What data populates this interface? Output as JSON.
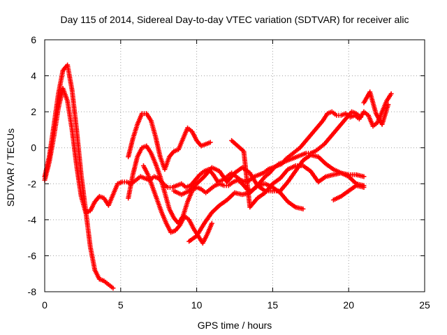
{
  "chart_data": {
    "type": "scatter",
    "title": "Day 115 of 2014, Sidereal Day-to-day VTEC variation (SDTVAR) for receiver alic",
    "xlabel": "GPS time / hours",
    "ylabel": "SDTVAR / TECUs",
    "xlim": [
      0,
      25
    ],
    "ylim": [
      -8,
      6
    ],
    "x_ticks": [
      "0",
      "5",
      "10",
      "15",
      "20",
      "25"
    ],
    "y_ticks": [
      "-8",
      "-6",
      "-4",
      "-2",
      "0",
      "2",
      "4",
      "6"
    ],
    "grid": true,
    "legend": "none",
    "marker": "plus",
    "color": "#ff0000",
    "series": [
      {
        "x": [
          0.0,
          0.3,
          0.6,
          0.9,
          1.2,
          1.5,
          1.8,
          2.1,
          2.4,
          2.7,
          3.0,
          3.3,
          3.6,
          3.9,
          4.2,
          4.5
        ],
        "y": [
          -1.6,
          -0.5,
          1.2,
          3.0,
          4.3,
          4.6,
          3.2,
          1.0,
          -1.5,
          -3.5,
          -5.5,
          -6.8,
          -7.3,
          -7.4,
          -7.6,
          -7.8
        ]
      },
      {
        "x": [
          0.0,
          0.3,
          0.6,
          0.9,
          1.2,
          1.5,
          1.8,
          2.1,
          2.4,
          2.7,
          3.0,
          3.3,
          3.6,
          3.9,
          4.2,
          4.5,
          4.8,
          5.1,
          5.4,
          5.7,
          6.0,
          6.3,
          6.6,
          6.9,
          7.2,
          7.5,
          7.8,
          8.1,
          8.4,
          8.7,
          9.0,
          9.3,
          9.6,
          9.9,
          10.2,
          10.5,
          10.8,
          11.1,
          11.4,
          11.7,
          12.0,
          12.3,
          12.6,
          12.9,
          13.2,
          13.5,
          13.8,
          14.1,
          14.4,
          14.7,
          15.0,
          15.3,
          15.6,
          15.9,
          16.2,
          16.5,
          16.8,
          17.1,
          17.4,
          17.7,
          18.0,
          18.3,
          18.6,
          18.9,
          19.2,
          19.5,
          19.8,
          20.1,
          20.4,
          20.7,
          21.0,
          21.3,
          21.6,
          21.9,
          22.2,
          22.5,
          22.8
        ],
        "y": [
          -1.8,
          -0.8,
          0.6,
          2.2,
          3.3,
          2.6,
          1.0,
          -1.0,
          -2.7,
          -3.6,
          -3.5,
          -3.0,
          -2.7,
          -2.8,
          -3.2,
          -2.6,
          -2.0,
          -1.9,
          -1.9,
          -2.0,
          -1.8,
          -1.6,
          -1.7,
          -1.8,
          -1.6,
          -1.7,
          -2.0,
          -2.2,
          -2.2,
          -2.1,
          -2.0,
          -2.2,
          -2.1,
          -1.8,
          -1.5,
          -1.3,
          -1.2,
          -1.5,
          -1.9,
          -1.8,
          -1.6,
          -1.4,
          -1.6,
          -1.8,
          -1.9,
          -1.8,
          -1.6,
          -1.5,
          -1.4,
          -1.2,
          -1.1,
          -1.0,
          -0.9,
          -0.6,
          -0.4,
          -0.2,
          0.0,
          0.3,
          0.6,
          0.9,
          1.2,
          1.5,
          1.9,
          2.0,
          1.8,
          1.8,
          1.9,
          1.7,
          1.8,
          1.6,
          2.0,
          1.8,
          1.2,
          1.4,
          2.0,
          2.6,
          3.0
        ]
      },
      {
        "x": [
          5.5,
          5.8,
          6.1,
          6.4,
          6.7,
          7.0,
          7.3,
          7.6,
          7.9,
          8.2,
          8.5,
          8.8,
          9.1,
          9.4,
          9.7,
          10.0,
          10.3,
          10.6,
          10.9,
          11.2,
          11.5,
          11.8,
          12.1,
          12.4,
          12.7,
          13.0,
          13.3,
          13.6,
          13.9,
          14.2,
          14.5,
          14.8,
          15.1,
          15.4,
          15.7,
          16.0,
          16.3,
          16.6,
          16.9,
          17.2,
          17.5,
          17.8,
          18.1,
          18.4,
          18.7,
          19.0,
          19.3,
          19.6,
          19.9,
          20.2,
          20.5,
          20.8
        ],
        "y": [
          -2.8,
          -1.5,
          -0.5,
          0.0,
          0.1,
          -0.3,
          -0.9,
          -1.6,
          -2.5,
          -3.4,
          -3.9,
          -4.2,
          -3.8,
          -3.0,
          -2.4,
          -2.2,
          -2.3,
          -2.5,
          -2.3,
          -2.1,
          -2.0,
          -2.1,
          -2.1,
          -1.9,
          -1.8,
          -2.0,
          -2.3,
          -2.4,
          -2.2,
          -1.9,
          -1.6,
          -1.4,
          -1.1,
          -0.9,
          -0.8,
          -0.7,
          -0.6,
          -0.5,
          -0.4,
          -0.3,
          -0.3,
          -0.2,
          0.0,
          0.2,
          0.5,
          0.8,
          1.1,
          1.4,
          1.7,
          2.0,
          1.9,
          1.7
        ]
      },
      {
        "x": [
          5.5,
          5.8,
          6.1,
          6.4,
          6.7,
          7.0,
          7.3,
          7.6,
          7.9,
          8.2,
          8.5,
          8.8,
          9.1,
          9.4,
          9.7,
          10.0,
          10.3,
          10.6,
          10.9
        ],
        "y": [
          -0.5,
          0.5,
          1.3,
          1.9,
          1.9,
          1.5,
          0.6,
          -0.5,
          -1.2,
          -0.5,
          -0.2,
          -0.1,
          0.5,
          1.1,
          0.9,
          0.4,
          0.1,
          0.2,
          0.3
        ]
      },
      {
        "x": [
          6.5,
          6.8,
          7.1,
          7.4,
          7.7,
          8.0,
          8.3,
          8.6,
          8.9,
          9.2,
          9.5,
          9.8,
          10.1,
          10.4,
          10.7,
          11.0
        ],
        "y": [
          -1.0,
          -1.5,
          -2.2,
          -2.9,
          -3.6,
          -4.2,
          -4.7,
          -4.6,
          -4.3,
          -3.8,
          -4.0,
          -4.5,
          -4.9,
          -5.3,
          -4.8,
          -4.2
        ]
      },
      {
        "x": [
          8.5,
          9.0,
          9.5,
          10.0,
          10.5,
          11.0,
          11.5,
          12.0,
          12.5,
          13.0,
          13.5,
          14.0,
          14.5,
          15.0,
          15.5,
          16.0,
          16.5,
          17.0,
          17.5,
          18.0,
          18.5,
          19.0,
          19.5,
          20.0,
          20.5,
          21.0
        ],
        "y": [
          -2.4,
          -2.6,
          -2.4,
          -2.0,
          -1.6,
          -1.1,
          -1.3,
          -1.9,
          -1.4,
          -1.1,
          -1.4,
          -2.1,
          -2.4,
          -2.4,
          -2.4,
          -1.9,
          -1.3,
          -0.7,
          -0.4,
          -0.5,
          -0.9,
          -1.2,
          -1.4,
          -1.6,
          -2.0,
          -2.1
        ]
      },
      {
        "x": [
          9.5,
          10.0,
          10.5,
          11.0,
          11.5,
          12.0,
          12.5,
          13.0,
          13.5,
          14.0,
          14.5,
          15.0,
          15.5,
          16.0,
          16.5,
          17.0
        ],
        "y": [
          -5.2,
          -4.9,
          -4.2,
          -3.6,
          -3.2,
          -2.9,
          -2.5,
          -2.6,
          -2.5,
          -2.1,
          -2.0,
          -2.2,
          -2.5,
          -3.0,
          -3.3,
          -3.4
        ]
      },
      {
        "x": [
          12.3,
          12.7,
          13.1,
          13.5,
          14.0,
          14.5,
          15.0,
          15.5,
          16.0,
          16.5,
          17.0,
          17.5,
          18.0,
          18.5,
          19.0,
          19.5,
          20.0,
          20.5,
          21.0
        ],
        "y": [
          0.4,
          0.1,
          -0.2,
          -3.3,
          -2.8,
          -2.5,
          -2.0,
          -1.7,
          -1.2,
          -1.0,
          -1.0,
          -1.3,
          -1.9,
          -1.6,
          -1.5,
          -1.4,
          -1.5,
          -1.5,
          -1.6
        ]
      },
      {
        "x": [
          19.0,
          19.5,
          20.0,
          20.5,
          21.0
        ],
        "y": [
          -2.9,
          -2.7,
          -2.4,
          -2.1,
          -2.2
        ]
      },
      {
        "x": [
          21.0,
          21.4,
          21.8,
          22.2,
          22.6
        ],
        "y": [
          2.5,
          3.1,
          1.9,
          1.3,
          2.4
        ]
      }
    ]
  }
}
